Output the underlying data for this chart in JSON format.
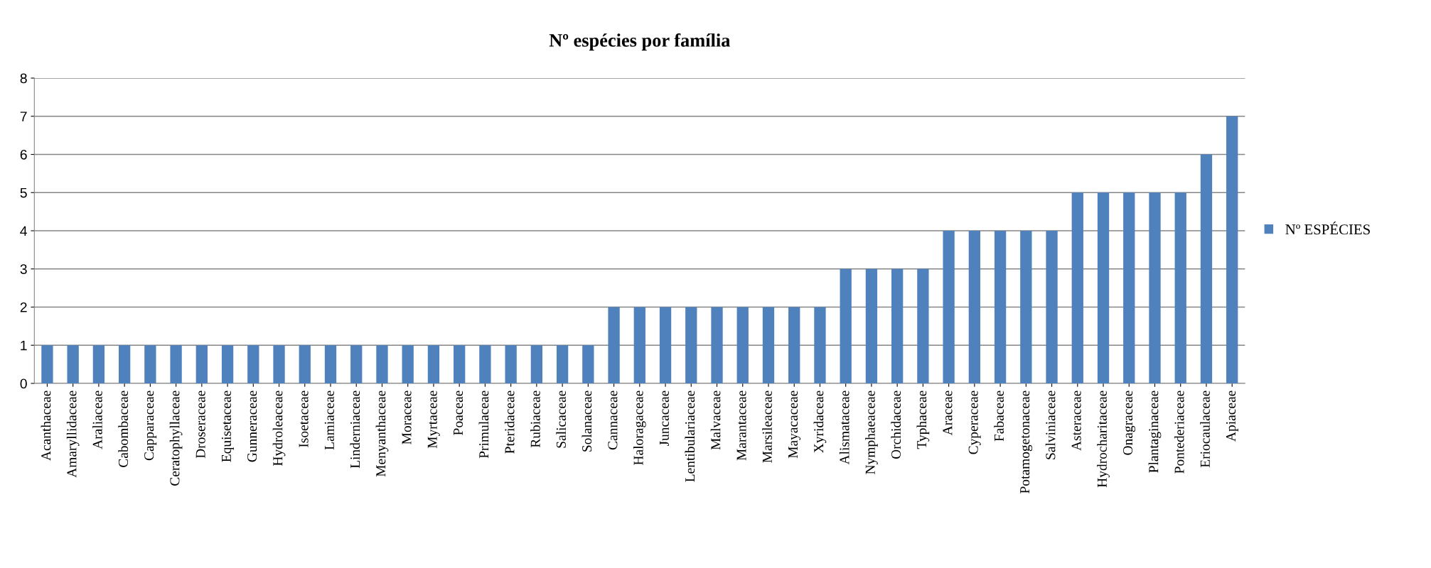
{
  "chart_data": {
    "type": "bar",
    "title": "Nº espécies por família",
    "categories": [
      "Acanthaceae",
      "Amaryllidaceae",
      "Araliaceae",
      "Cabombaceae",
      "Capparaceae",
      "Ceratophyllaceae",
      "Droseraceae",
      "Equisetaceae",
      "Gunneraceae",
      "Hydroleaceae",
      "Isoetaceae",
      "Lamiaceae",
      "Linderniaceae",
      "Menyanthaceae",
      "Moraceae",
      "Myrtaceae",
      "Poaceae",
      "Primulaceae",
      "Pteridaceae",
      "Rubiaceae",
      "Salicaceae",
      "Solanaceae",
      "Cannaceae",
      "Haloragaceae",
      "Juncaceae",
      "Lentibulariaceae",
      "Malvaceae",
      "Marantaceae",
      "Marsileaceae",
      "Mayacaceae",
      "Xyridaceae",
      "Alismataceae",
      "Nymphaeaceae",
      "Orchidaceae",
      "Typhaceae",
      "Araceae",
      "Cyperaceae",
      "Fabaceae",
      "Potamogetonaceae",
      "Salviniaceae",
      "Asteraceae",
      "Hydrocharitaceae",
      "Onagraceae",
      "Plantaginaceae",
      "Pontederiaceae",
      "Eriocaulaceae",
      "Apiaceae"
    ],
    "series": [
      {
        "name": "Nº ESPÉCIES",
        "color": "#4f81bd",
        "values": [
          1,
          1,
          1,
          1,
          1,
          1,
          1,
          1,
          1,
          1,
          1,
          1,
          1,
          1,
          1,
          1,
          1,
          1,
          1,
          1,
          1,
          1,
          2,
          2,
          2,
          2,
          2,
          2,
          2,
          2,
          2,
          3,
          3,
          3,
          3,
          4,
          4,
          4,
          4,
          4,
          5,
          5,
          5,
          5,
          5,
          6,
          7
        ]
      }
    ],
    "ylim": [
      0,
      8
    ],
    "yticks": [
      0,
      1,
      2,
      3,
      4,
      5,
      6,
      7,
      8
    ],
    "grid": "y",
    "legend": "right"
  }
}
